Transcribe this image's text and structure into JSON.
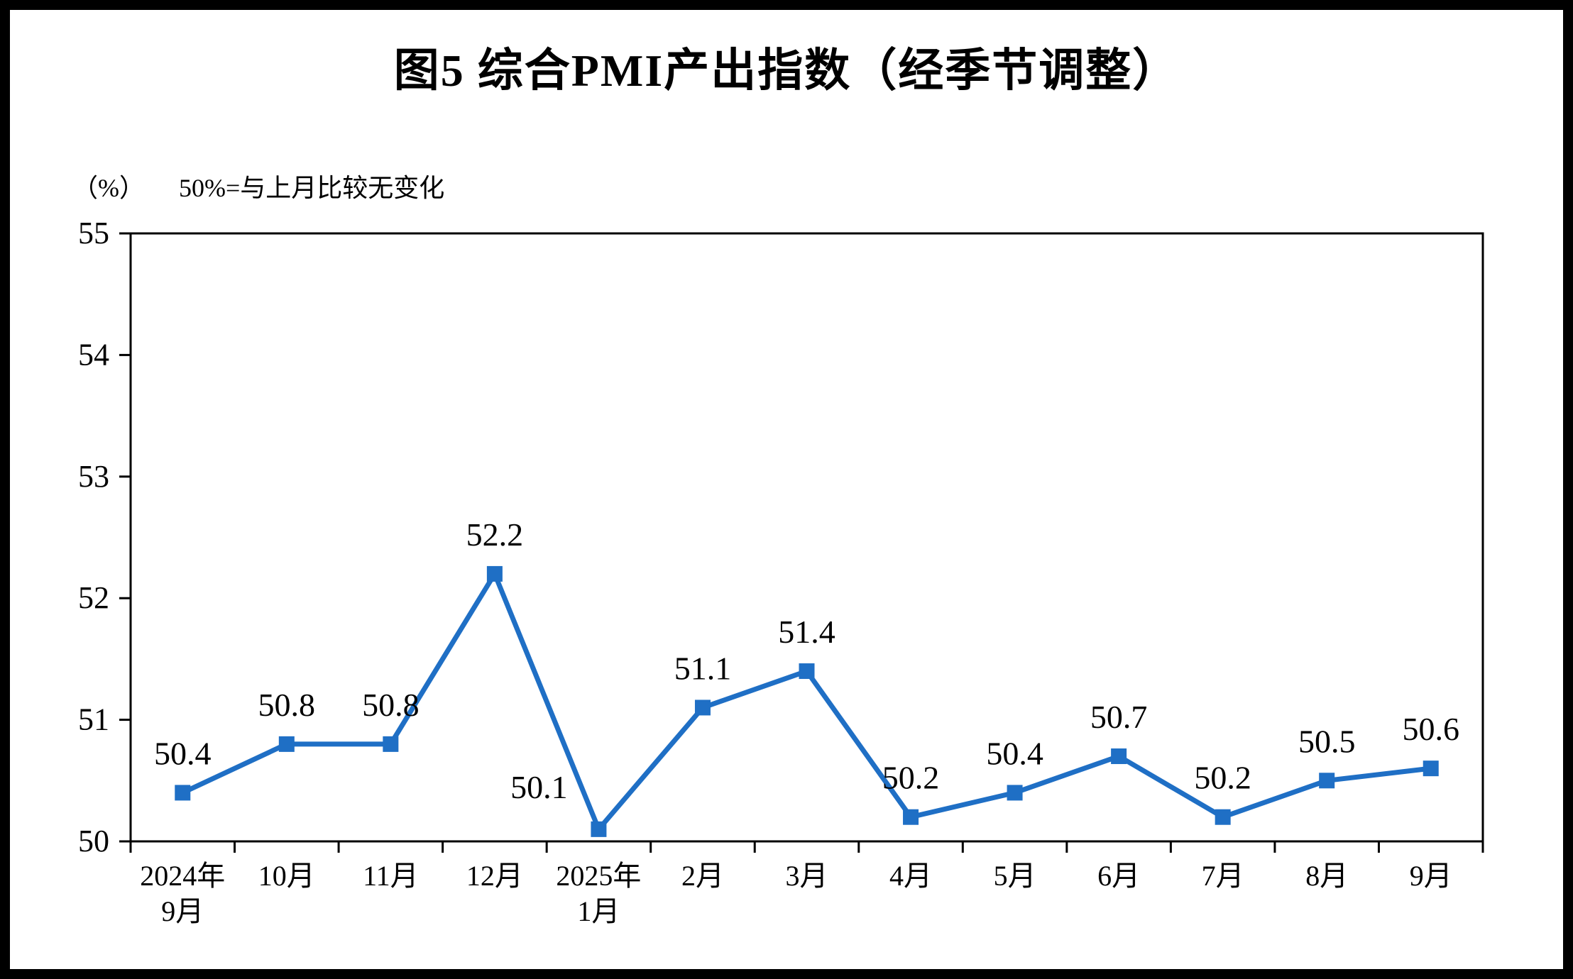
{
  "frame": {
    "border_color": "#000000",
    "background": "#FFFFFF"
  },
  "chart_data": {
    "type": "line",
    "title": "图5 综合PMI产出指数（经季节调整）",
    "unit_label": "（%）",
    "note": "50%=与上月比较无变化",
    "categories": [
      "2024年\n9月",
      "10月",
      "11月",
      "12月",
      "2025年\n1月",
      "2月",
      "3月",
      "4月",
      "5月",
      "6月",
      "7月",
      "8月",
      "9月"
    ],
    "values": [
      50.4,
      50.8,
      50.8,
      52.2,
      50.1,
      51.1,
      51.4,
      50.2,
      50.4,
      50.7,
      50.2,
      50.5,
      50.6
    ],
    "data_labels": [
      "50.4",
      "50.8",
      "50.8",
      "52.2",
      "50.1",
      "51.1",
      "51.4",
      "50.2",
      "50.4",
      "50.7",
      "50.2",
      "50.5",
      "50.6"
    ],
    "yticks": [
      50,
      51,
      52,
      53,
      54,
      55
    ],
    "ylim": [
      50,
      55
    ],
    "ytick_step": 1,
    "line_color": "#1F6FC5",
    "marker": "square",
    "grid": false,
    "legend": "none",
    "axis_color": "#000000"
  }
}
